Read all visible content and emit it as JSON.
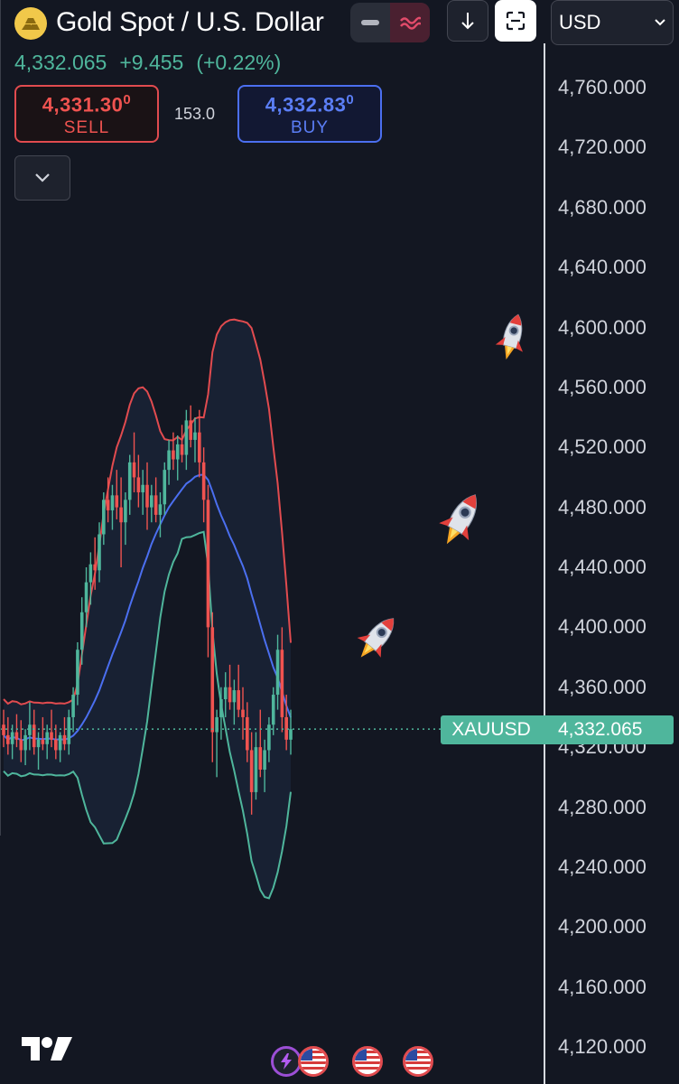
{
  "header": {
    "title": "Gold Spot / U.S. Dollar",
    "last_price": "4,332.065",
    "change": "+9.455",
    "change_pct": "(+0.22%)",
    "currency": "USD"
  },
  "trade": {
    "sell_price_main": "4,331.30",
    "sell_price_sup": "0",
    "sell_label": "SELL",
    "buy_price_main": "4,332.83",
    "buy_price_sup": "0",
    "buy_label": "BUY",
    "spread": "153.0"
  },
  "price_tag": {
    "symbol": "XAUUSD",
    "value": "4,332.065"
  },
  "icons": [
    "gold-bars-icon",
    "line-style-icon",
    "wave-icon",
    "arrow-down-icon",
    "screenshot-icon",
    "chevron-down-icon",
    "rocket-icon",
    "tradingview-logo",
    "lightning-icon",
    "us-flag-icon"
  ],
  "colors": {
    "up": "#4fb69c",
    "down": "#ef5350",
    "upper_band": "#e14b4f",
    "lower_band": "#4fb69c",
    "basis": "#4b6ff0",
    "background": "#131722"
  },
  "chart_data": {
    "type": "candlestick",
    "symbol": "XAUUSD",
    "y_axis_ticks": [
      "4,760.000",
      "4,720.000",
      "4,680.000",
      "4,640.000",
      "4,600.000",
      "4,560.000",
      "4,520.000",
      "4,480.000",
      "4,440.000",
      "4,400.000",
      "4,360.000",
      "4,320.000",
      "4,280.000",
      "4,240.000",
      "4,200.000",
      "4,160.000",
      "4,120.000"
    ],
    "ylim": [
      4110,
      4790
    ],
    "last_price": 4332.065,
    "indicator": "Bollinger Bands",
    "candles": [
      [
        4335,
        4345,
        4320,
        4328
      ],
      [
        4328,
        4340,
        4315,
        4322
      ],
      [
        4322,
        4335,
        4312,
        4330
      ],
      [
        4330,
        4342,
        4320,
        4325
      ],
      [
        4325,
        4338,
        4310,
        4318
      ],
      [
        4318,
        4332,
        4308,
        4328
      ],
      [
        4328,
        4350,
        4318,
        4335
      ],
      [
        4335,
        4345,
        4315,
        4320
      ],
      [
        4320,
        4330,
        4305,
        4325
      ],
      [
        4325,
        4340,
        4318,
        4322
      ],
      [
        4322,
        4335,
        4312,
        4330
      ],
      [
        4330,
        4345,
        4320,
        4325
      ],
      [
        4325,
        4335,
        4312,
        4318
      ],
      [
        4318,
        4330,
        4310,
        4328
      ],
      [
        4328,
        4340,
        4318,
        4322
      ],
      [
        4322,
        4345,
        4315,
        4340
      ],
      [
        4340,
        4360,
        4330,
        4355
      ],
      [
        4355,
        4390,
        4348,
        4385
      ],
      [
        4385,
        4420,
        4375,
        4410
      ],
      [
        4410,
        4440,
        4400,
        4430
      ],
      [
        4430,
        4450,
        4415,
        4442
      ],
      [
        4442,
        4460,
        4425,
        4438
      ],
      [
        4438,
        4470,
        4430,
        4462
      ],
      [
        4462,
        4490,
        4455,
        4485
      ],
      [
        4485,
        4500,
        4470,
        4478
      ],
      [
        4478,
        4495,
        4465,
        4488
      ],
      [
        4488,
        4505,
        4472,
        4480
      ],
      [
        4480,
        4500,
        4440,
        4470
      ],
      [
        4470,
        4490,
        4455,
        4485
      ],
      [
        4485,
        4515,
        4475,
        4510
      ],
      [
        4510,
        4530,
        4490,
        4500
      ],
      [
        4500,
        4515,
        4480,
        4490
      ],
      [
        4490,
        4505,
        4475,
        4495
      ],
      [
        4495,
        4510,
        4465,
        4480
      ],
      [
        4480,
        4495,
        4470,
        4488
      ],
      [
        4488,
        4500,
        4470,
        4475
      ],
      [
        4475,
        4490,
        4460,
        4482
      ],
      [
        4482,
        4510,
        4475,
        4505
      ],
      [
        4505,
        4525,
        4495,
        4518
      ],
      [
        4518,
        4530,
        4505,
        4512
      ],
      [
        4512,
        4528,
        4498,
        4522
      ],
      [
        4522,
        4535,
        4510,
        4515
      ],
      [
        4515,
        4545,
        4505,
        4538
      ],
      [
        4538,
        4548,
        4520,
        4525
      ],
      [
        4525,
        4540,
        4510,
        4530
      ],
      [
        4530,
        4545,
        4500,
        4510
      ],
      [
        4510,
        4520,
        4470,
        4485
      ],
      [
        4485,
        4495,
        4380,
        4400
      ],
      [
        4400,
        4410,
        4310,
        4330
      ],
      [
        4330,
        4345,
        4300,
        4340
      ],
      [
        4340,
        4360,
        4325,
        4352
      ],
      [
        4352,
        4370,
        4340,
        4360
      ],
      [
        4360,
        4375,
        4345,
        4350
      ],
      [
        4350,
        4365,
        4335,
        4358
      ],
      [
        4358,
        4375,
        4340,
        4345
      ],
      [
        4345,
        4360,
        4325,
        4340
      ],
      [
        4340,
        4350,
        4310,
        4318
      ],
      [
        4318,
        4330,
        4275,
        4290
      ],
      [
        4290,
        4330,
        4285,
        4320
      ],
      [
        4320,
        4345,
        4300,
        4305
      ],
      [
        4305,
        4325,
        4290,
        4318
      ],
      [
        4318,
        4340,
        4310,
        4335
      ],
      [
        4335,
        4360,
        4328,
        4355
      ],
      [
        4355,
        4395,
        4345,
        4385
      ],
      [
        4385,
        4400,
        4330,
        4340
      ],
      [
        4340,
        4355,
        4318,
        4325
      ],
      [
        4325,
        4345,
        4315,
        4332
      ]
    ]
  }
}
